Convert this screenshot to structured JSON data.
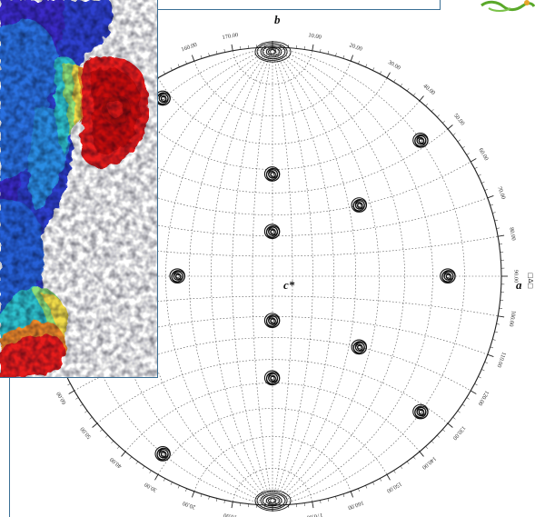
{
  "figure": {
    "axis_labels": {
      "top": "b",
      "right": "a",
      "center": "c*"
    },
    "right_edge_marks": "□∆□",
    "angle_scale": {
      "unit_suffix": ".00",
      "labels": [
        "0.00",
        "10.00",
        "20.00",
        "30.00",
        "40.00",
        "50.00",
        "60.00",
        "70.00",
        "80.00",
        "90.00",
        "100.00",
        "110.00",
        "120.00",
        "130.00",
        "140.00",
        "150.00",
        "160.00",
        "170.00",
        "180.00",
        "10.00",
        "20.00",
        "30.00",
        "40.00",
        "50.00",
        "60.00",
        "70.00",
        "80.00",
        "90.00",
        "100.00",
        "110.00",
        "120.00",
        "130.00",
        "140.00",
        "150.00",
        "160.00",
        "170.00"
      ]
    },
    "peaks": [
      {
        "lon": 0,
        "lat": 90
      },
      {
        "lon": 0,
        "lat": -90
      },
      {
        "lon": 0,
        "lat": 48
      },
      {
        "lon": 0,
        "lat": 22
      },
      {
        "lon": 0,
        "lat": -22
      },
      {
        "lon": 0,
        "lat": -48
      },
      {
        "lon": -45,
        "lat": 0
      },
      {
        "lon": 75,
        "lat": 0
      },
      {
        "lon": 45,
        "lat": 30
      },
      {
        "lon": 45,
        "lat": -30
      },
      {
        "lon": 80,
        "lat": 42
      },
      {
        "lon": 80,
        "lat": -42
      },
      {
        "lon": -80,
        "lat": 58
      },
      {
        "lon": -80,
        "lat": -58
      }
    ],
    "colors": {
      "frame": "#3a6f95",
      "grid": "#555555",
      "contour": "#111111"
    }
  },
  "inset": {
    "description_icon": "protein-surface-image",
    "colors": [
      "#2b2bd6",
      "#1f7fe0",
      "#23c3d8",
      "#8fe08a",
      "#f4e04a",
      "#f08a2a",
      "#e81b1b"
    ]
  }
}
